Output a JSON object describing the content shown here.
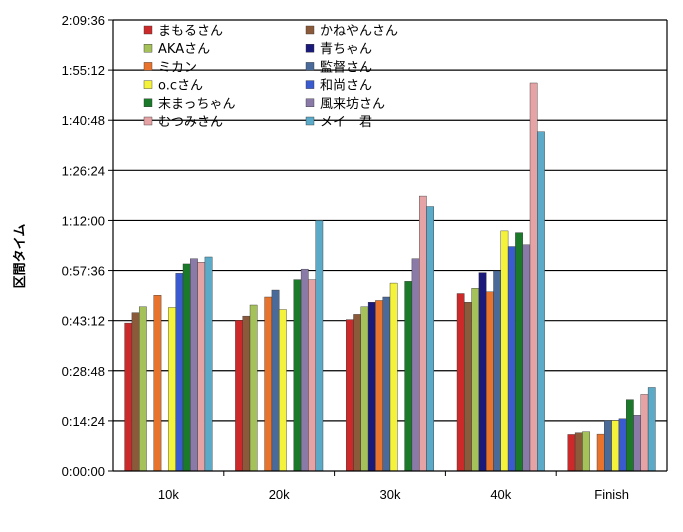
{
  "chart_data": {
    "type": "bar",
    "ylabel": "区間タイム",
    "categories": [
      "10k",
      "20k",
      "30k",
      "40k",
      "Finish"
    ],
    "yticks": [
      "0:00:00",
      "0:14:24",
      "0:28:48",
      "0:43:12",
      "0:57:36",
      "1:12:00",
      "1:26:24",
      "1:40:48",
      "1:55:12",
      "2:09:36"
    ],
    "ylim_minutes": [
      0,
      129.6
    ],
    "grid": true,
    "legend_position": "top-left",
    "series": [
      {
        "name": "まもるさん",
        "color": "#cc2a2a",
        "values": [
          42.5,
          43.3,
          43.5,
          51.0,
          10.5
        ]
      },
      {
        "name": "AKAさん",
        "color": "#a5c15a",
        "values": [
          47.2,
          47.7,
          47.2,
          52.5,
          11.3
        ]
      },
      {
        "name": "ミカン",
        "color": "#e8732c",
        "values": [
          50.5,
          50.0,
          49.0,
          51.5,
          10.6
        ]
      },
      {
        "name": "o.cさん",
        "color": "#f4f23a",
        "values": [
          47.0,
          46.4,
          54.0,
          69.0,
          14.5
        ]
      },
      {
        "name": "末まっちゃん",
        "color": "#1a7a2a",
        "values": [
          59.5,
          55.0,
          54.5,
          68.5,
          20.5
        ]
      },
      {
        "name": "むつみさん",
        "color": "#e6a3a6",
        "values": [
          60.0,
          55.0,
          79.0,
          111.5,
          22.0
        ]
      },
      {
        "name": "かねやんさん",
        "color": "#8b5a3a",
        "values": [
          45.5,
          44.5,
          45.0,
          48.5,
          11.0
        ]
      },
      {
        "name": "青ちゃん",
        "color": "#1a1a7a",
        "values": [
          null,
          null,
          48.5,
          57.0,
          null
        ]
      },
      {
        "name": "監督さん",
        "color": "#4a6a9a",
        "values": [
          null,
          52.0,
          50.0,
          57.5,
          14.5
        ]
      },
      {
        "name": "和尚さん",
        "color": "#3a5ad0",
        "values": [
          56.8,
          null,
          null,
          64.5,
          15.0
        ]
      },
      {
        "name": "風来坊さん",
        "color": "#8a7aa8",
        "values": [
          61.0,
          58.0,
          61.0,
          65.0,
          16.0
        ]
      },
      {
        "name": "メイ　君",
        "color": "#5aaac8",
        "values": [
          61.5,
          72.0,
          76.0,
          97.5,
          24.0
        ]
      }
    ],
    "legend_order": [
      [
        "まもるさん",
        "かねやんさん"
      ],
      [
        "AKAさん",
        "青ちゃん"
      ],
      [
        "ミカン",
        "監督さん"
      ],
      [
        "o.cさん",
        "和尚さん"
      ],
      [
        "末まっちゃん",
        "風来坊さん"
      ],
      [
        "むつみさん",
        "メイ　君"
      ]
    ],
    "bar_order": [
      "まもるさん",
      "かねやんさん",
      "AKAさん",
      "青ちゃん",
      "ミカン",
      "監督さん",
      "o.cさん",
      "和尚さん",
      "末まっちゃん",
      "風来坊さん",
      "むつみさん",
      "メイ　君"
    ]
  }
}
